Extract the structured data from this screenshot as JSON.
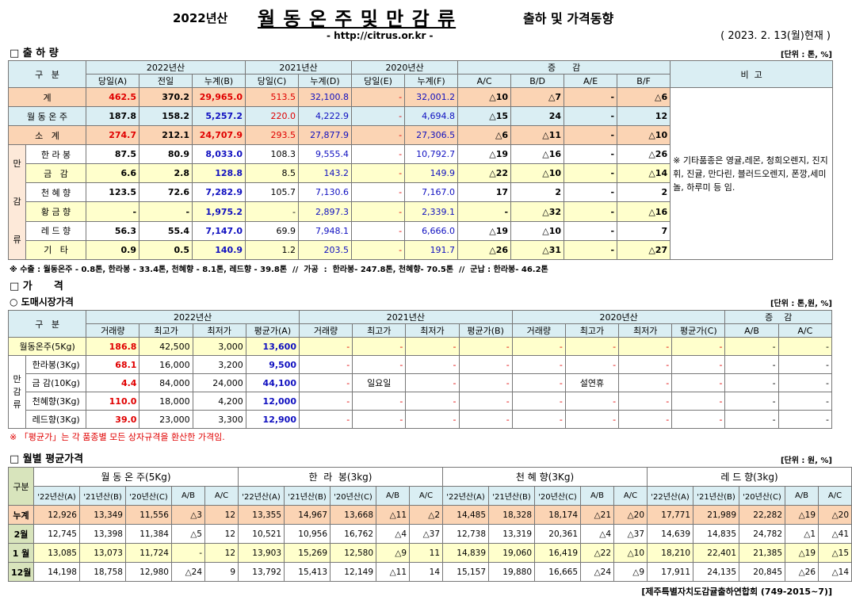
{
  "header": {
    "year": "2022년산",
    "title": "월 동 온 주 및 만 감 류",
    "subtitle": "출하 및 가격동향",
    "url": "- http://citrus.or.kr -",
    "date": "( 2023. 2. 13(월)현재 )"
  },
  "shipment": {
    "heading": "□ 출 하 량",
    "unit": "[단위 : 톤, %]",
    "columns_top": [
      "구   분",
      "2022년산",
      "2021년산",
      "2020년산",
      "증      감",
      "비  고"
    ],
    "columns_sub": [
      "당일(A)",
      "전일",
      "누계(B)",
      "당일(C)",
      "누계(D)",
      "당일(E)",
      "누계(F)",
      "A/C",
      "B/D",
      "A/E",
      "B/F"
    ],
    "group_label": [
      "만",
      "감",
      "류"
    ],
    "rows": [
      {
        "label": "계",
        "cells": [
          "462.5",
          "370.2",
          "29,965.0",
          "513.5",
          "32,100.8",
          "-",
          "32,001.2",
          "△10",
          "△7",
          "-",
          "△6"
        ]
      },
      {
        "label": "월 동 온 주",
        "cells": [
          "187.8",
          "158.2",
          "5,257.2",
          "220.0",
          "4,222.9",
          "-",
          "4,694.8",
          "△15",
          "24",
          "-",
          "12"
        ]
      },
      {
        "label": "소   계",
        "cells": [
          "274.7",
          "212.1",
          "24,707.9",
          "293.5",
          "27,877.9",
          "-",
          "27,306.5",
          "△6",
          "△11",
          "-",
          "△10"
        ]
      },
      {
        "label": "한 라 봉",
        "cells": [
          "87.5",
          "80.9",
          "8,033.0",
          "108.3",
          "9,555.4",
          "-",
          "10,792.7",
          "△19",
          "△16",
          "-",
          "△26"
        ]
      },
      {
        "label": "금   감",
        "cells": [
          "6.6",
          "2.8",
          "128.8",
          "8.5",
          "143.2",
          "-",
          "149.9",
          "△22",
          "△10",
          "-",
          "△14"
        ]
      },
      {
        "label": "천 혜 향",
        "cells": [
          "123.5",
          "72.6",
          "7,282.9",
          "105.7",
          "7,130.6",
          "-",
          "7,167.0",
          "17",
          "2",
          "-",
          "2"
        ]
      },
      {
        "label": "황 금 향",
        "cells": [
          "-",
          "-",
          "1,975.2",
          "-",
          "2,897.3",
          "-",
          "2,339.1",
          "-",
          "△32",
          "-",
          "△16"
        ]
      },
      {
        "label": "레 드 향",
        "cells": [
          "56.3",
          "55.4",
          "7,147.0",
          "69.9",
          "7,948.1",
          "-",
          "6,666.0",
          "△19",
          "△10",
          "-",
          "7"
        ]
      },
      {
        "label": "기   타",
        "cells": [
          "0.9",
          "0.5",
          "140.9",
          "1.2",
          "203.5",
          "-",
          "191.7",
          "△26",
          "△31",
          "-",
          "△27"
        ]
      }
    ],
    "note": "※ 기타품종은 영귤,레몬, 청희오렌지, 진지휘, 진귤, 만다린, 블러드오렌지, 폰깡,세미놀, 하루미 등 임.",
    "footnote": "※ 수출 : 월동온주 - 0.8톤, 한라봉 - 33.4톤, 천혜향 - 8.1톤, 레드향 - 39.8톤  //  가공  :  한라봉- 247.8톤, 천혜향- 70.5톤  //  군납 : 한라봉- 46.2톤"
  },
  "price": {
    "heading": "□ 가      격",
    "subheading": "○ 도매시장가격",
    "unit": "[단위 : 톤,원, %]",
    "columns_top": [
      "구   분",
      "2022년산",
      "2021년산",
      "2020년산",
      "증    감"
    ],
    "columns_sub": [
      "거래량",
      "최고가",
      "최저가",
      "평균가(A)",
      "거래량",
      "최고가",
      "최저가",
      "평균가(B)",
      "거래량",
      "최고가",
      "최저가",
      "평균가(C)",
      "A/B",
      "A/C"
    ],
    "group_label": [
      "만",
      "감",
      "류"
    ],
    "rows": [
      {
        "label": "월동온주(5Kg)",
        "cells": [
          "186.8",
          "42,500",
          "3,000",
          "13,600",
          "-",
          "-",
          "-",
          "-",
          "-",
          "-",
          "-",
          "-",
          "-",
          "-"
        ]
      },
      {
        "label": "한라봉(3Kg)",
        "cells": [
          "68.1",
          "16,000",
          "3,200",
          "9,500",
          "-",
          "-",
          "-",
          "-",
          "-",
          "-",
          "-",
          "-",
          "-",
          "-"
        ]
      },
      {
        "label": "금 감(10Kg)",
        "cells": [
          "4.4",
          "84,000",
          "24,000",
          "44,100",
          "-",
          "일요일",
          "-",
          "-",
          "-",
          "설연휴",
          "-",
          "-",
          "-",
          "-"
        ]
      },
      {
        "label": "천혜향(3Kg)",
        "cells": [
          "110.0",
          "18,000",
          "4,200",
          "12,000",
          "-",
          "-",
          "-",
          "-",
          "-",
          "-",
          "-",
          "-",
          "-",
          "-"
        ]
      },
      {
        "label": "레드향(3Kg)",
        "cells": [
          "39.0",
          "23,000",
          "3,300",
          "12,900",
          "-",
          "-",
          "-",
          "-",
          "-",
          "-",
          "-",
          "-",
          "-",
          "-"
        ]
      }
    ],
    "note": "※ 「평균가」는 각 품종별 모든 상자규격을 환산한 가격임."
  },
  "monthly": {
    "heading": "□ 월별 평균가격",
    "unit": "[단위 : 원, %]",
    "corner": "구분",
    "groups": [
      "월 동 온 주(5Kg)",
      "한  라  봉(3kg)",
      "천 혜 향(3Kg)",
      "레 드 향(3kg)"
    ],
    "columns_sub": [
      "'22년산(A)",
      "'21년산(B)",
      "'20년산(C)",
      "A/B",
      "A/C"
    ],
    "rows": [
      {
        "label": "누계",
        "cells": [
          "12,926",
          "13,349",
          "11,556",
          "△3",
          "12",
          "13,355",
          "14,967",
          "13,668",
          "△11",
          "△2",
          "14,485",
          "18,328",
          "18,174",
          "△21",
          "△20",
          "17,771",
          "21,989",
          "22,282",
          "△19",
          "△20"
        ]
      },
      {
        "label": "2월",
        "cells": [
          "12,745",
          "13,398",
          "11,384",
          "△5",
          "12",
          "10,521",
          "10,956",
          "16,762",
          "△4",
          "△37",
          "12,738",
          "13,319",
          "20,361",
          "△4",
          "△37",
          "14,639",
          "14,835",
          "24,782",
          "△1",
          "△41"
        ]
      },
      {
        "label": "1 월",
        "cells": [
          "13,085",
          "13,073",
          "11,724",
          "-",
          "12",
          "13,903",
          "15,269",
          "12,580",
          "△9",
          "11",
          "14,839",
          "19,060",
          "16,419",
          "△22",
          "△10",
          "18,210",
          "22,401",
          "21,385",
          "△19",
          "△15"
        ]
      },
      {
        "label": "12월",
        "cells": [
          "14,198",
          "18,758",
          "12,980",
          "△24",
          "9",
          "13,792",
          "15,413",
          "12,149",
          "△11",
          "14",
          "15,157",
          "19,880",
          "16,665",
          "△24",
          "△9",
          "17,911",
          "24,135",
          "20,845",
          "△26",
          "△14"
        ]
      }
    ]
  },
  "footer": "[제주특별자치도감귤출하연합회 (749-2015~7)]"
}
